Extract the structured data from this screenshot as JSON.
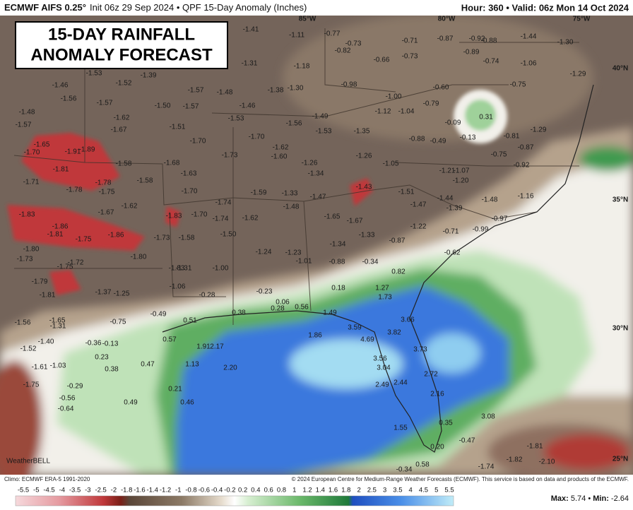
{
  "header": {
    "model": "ECMWF AIFS 0.25°",
    "info": "Init 06z 29 Sep 2024 • QPF 15-Day Anomaly (Inches)",
    "valid": "Hour: 360 • Valid: 06z Mon 14 Oct 2024"
  },
  "title": [
    "15-DAY RAINFALL",
    "ANOMALY FORECAST"
  ],
  "map": {
    "grid_labels": [
      "85°W",
      "80°W",
      "75°W",
      "40°N",
      "35°N",
      "30°N",
      "25°N"
    ],
    "logo": "WeatherBELL",
    "labels": [
      "-1.41",
      "-1.11",
      "-0.77",
      "-0.73",
      "-0.82",
      "-0.71",
      "-0.66",
      "-0.73",
      "-0.87",
      "-0.92",
      "-0.88",
      "-0.89",
      "-0.74",
      "-1.44",
      "-1.06",
      "-1.30",
      "-1.29",
      "-1.31",
      "-1.18",
      "-1.53",
      "-1.39",
      "-1.46",
      "-1.52",
      "-1.56",
      "-1.57",
      "-1.48",
      "-1.38",
      "-1.30",
      "-0.98",
      "-0.60",
      "-0.75",
      "-1.57",
      "-1.50",
      "-1.57",
      "-1.46",
      "-1.00",
      "-0.79",
      "-1.12",
      "-1.04",
      "0.31",
      "-1.48",
      "-1.62",
      "-1.53",
      "-1.56",
      "-1.49",
      "-1.57",
      "-1.67",
      "-1.51",
      "-1.53",
      "-1.35",
      "-0.09",
      "-1.70",
      "-1.70",
      "-0.13",
      "-0.88",
      "-0.49",
      "-0.81",
      "-0.87",
      "-1.29",
      "-1.65",
      "-1.91",
      "-1.89",
      "-1.70",
      "-1.62",
      "-1.60",
      "-1.73",
      "-1.26",
      "-0.75",
      "-1.58",
      "-1.68",
      "-1.26",
      "-1.05",
      "-1.21",
      "-1.07",
      "-0.92",
      "-1.81",
      "-1.63",
      "-1.34",
      "-1.20",
      "-1.71",
      "-1.78",
      "-1.58",
      "-1.78",
      "-1.75",
      "-1.70",
      "-1.59",
      "-1.33",
      "-1.47",
      "-1.43",
      "-1.51",
      "-1.44",
      "-1.48",
      "-1.16",
      "-1.83",
      "-1.67",
      "-1.62",
      "-1.74",
      "-1.48",
      "-1.47",
      "-1.39",
      "-1.83",
      "-1.70",
      "-1.74",
      "-1.62",
      "-1.65",
      "-1.67",
      "-0.97",
      "-1.86",
      "-1.81",
      "-1.75",
      "-1.86",
      "-1.73",
      "-1.58",
      "-1.50",
      "-1.33",
      "-1.22",
      "-0.71",
      "-0.99",
      "-0.87",
      "-1.80",
      "-1.34",
      "-1.24",
      "-1.23",
      "-0.62",
      "-1.73",
      "-1.80",
      "-1.01",
      "-0.88",
      "-0.34",
      "-1.72",
      "-1.75",
      "-1.83",
      "-1.31",
      "-1.00",
      "0.82",
      "-1.79",
      "-1.06",
      "0.18",
      "1.27",
      "-1.81",
      "-1.37",
      "-1.25",
      "-0.28",
      "-0.23",
      "1.73",
      "0.06",
      "0.28",
      "0.56",
      "0.38",
      "-0.49",
      "1.49",
      "-1.56",
      "-1.65",
      "-0.75",
      "0.51",
      "3.66",
      "-1.31",
      "3.59",
      "3.82",
      "1.86",
      "-1.40",
      "-0.36",
      "-0.13",
      "0.57",
      "1.91",
      "2.17",
      "4.69",
      "3.73",
      "-1.52",
      "0.23",
      "0.47",
      "1.13",
      "2.20",
      "3.56",
      "-1.61",
      "-1.03",
      "0.38",
      "3.04",
      "2.72",
      "2.49",
      "2.44",
      "-1.75",
      "-0.29",
      "0.21",
      "2.16",
      "-0.56",
      "0.49",
      "0.46",
      "-0.64",
      "1.55",
      "0.35",
      "3.08",
      "-0.47",
      "0.20",
      "-1.81",
      "-1.82",
      "-2.10",
      "-1.74",
      "0.58",
      "-0.34"
    ]
  },
  "colorbar": {
    "labels": [
      "-5.5",
      "-5",
      "-4.5",
      "-4",
      "-3.5",
      "-3",
      "-2.5",
      "-2",
      "-1.8",
      "-1.6",
      "-1.4",
      "-1.2",
      "-1",
      "-0.8",
      "-0.6",
      "-0.4",
      "-0.2",
      "0.2",
      "0.4",
      "0.6",
      "0.8",
      "1",
      "1.2",
      "1.4",
      "1.6",
      "1.8",
      "2",
      "2.5",
      "3",
      "3.5",
      "4",
      "4.5",
      "5",
      "5.5"
    ]
  },
  "footer": {
    "climo": "Climo: ECMWF ERA-5 1991-2020",
    "credit": "© 2024 European Centre for Medium-Range Weather Forecasts (ECMWF). This service is based on data and products of the ECMWF.",
    "max_label": "Max:",
    "max": "5.74",
    "sep": "•",
    "min_label": "Min:",
    "min": "-2.64"
  }
}
